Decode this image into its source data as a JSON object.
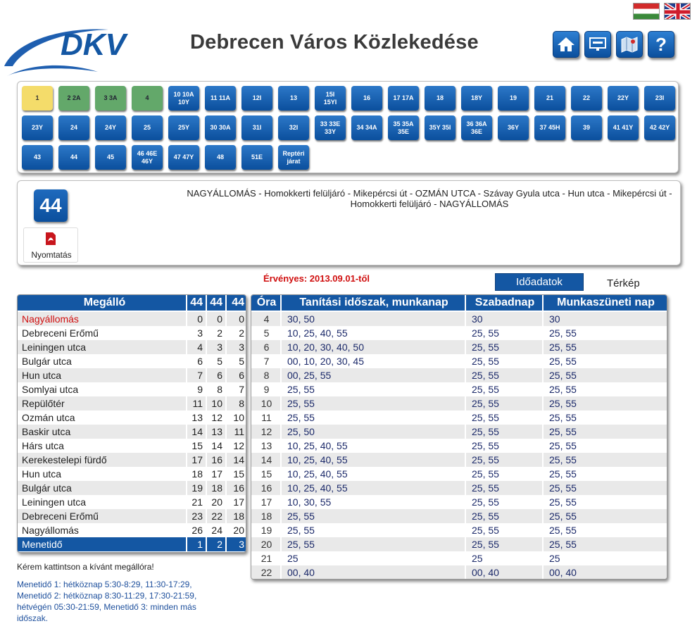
{
  "header": {
    "title": "Debrecen Város Közlekedése",
    "logo_text": "DKV",
    "buttons": [
      {
        "name": "home-button",
        "icon": "home-icon"
      },
      {
        "name": "display-button",
        "icon": "display-board-icon"
      },
      {
        "name": "map-button",
        "icon": "map-icon",
        "glyph": "▦"
      },
      {
        "name": "help-button",
        "icon": "help-icon",
        "glyph": "?"
      }
    ],
    "languages": [
      {
        "name": "flag-hungarian",
        "icon": "flag-hu-icon"
      },
      {
        "name": "flag-english",
        "icon": "flag-uk-icon"
      }
    ]
  },
  "lines": [
    {
      "label": "1",
      "style": "yellow"
    },
    {
      "label": "2 2A",
      "style": "green"
    },
    {
      "label": "3 3A",
      "style": "green"
    },
    {
      "label": "4",
      "style": "green"
    },
    {
      "label": "10 10A\n10Y",
      "style": "blue"
    },
    {
      "label": "11 11A",
      "style": "blue"
    },
    {
      "label": "12I",
      "style": "blue"
    },
    {
      "label": "13",
      "style": "blue"
    },
    {
      "label": "15I\n15YI",
      "style": "blue"
    },
    {
      "label": "16",
      "style": "blue"
    },
    {
      "label": "17 17A",
      "style": "blue"
    },
    {
      "label": "18",
      "style": "blue"
    },
    {
      "label": "18Y",
      "style": "blue"
    },
    {
      "label": "19",
      "style": "blue"
    },
    {
      "label": "21",
      "style": "blue"
    },
    {
      "label": "22",
      "style": "blue"
    },
    {
      "label": "22Y",
      "style": "blue"
    },
    {
      "label": "23I",
      "style": "blue"
    },
    {
      "label": "23Y",
      "style": "blue"
    },
    {
      "label": "24",
      "style": "blue"
    },
    {
      "label": "24Y",
      "style": "blue"
    },
    {
      "label": "25",
      "style": "blue"
    },
    {
      "label": "25Y",
      "style": "blue"
    },
    {
      "label": "30 30A",
      "style": "blue"
    },
    {
      "label": "31I",
      "style": "blue"
    },
    {
      "label": "32I",
      "style": "blue"
    },
    {
      "label": "33 33E\n33Y",
      "style": "blue"
    },
    {
      "label": "34 34A",
      "style": "blue"
    },
    {
      "label": "35 35A\n35E",
      "style": "blue"
    },
    {
      "label": "35Y 35I",
      "style": "blue"
    },
    {
      "label": "36 36A\n36E",
      "style": "blue"
    },
    {
      "label": "36Y",
      "style": "blue"
    },
    {
      "label": "37 45H",
      "style": "blue"
    },
    {
      "label": "39",
      "style": "blue"
    },
    {
      "label": "41 41Y",
      "style": "blue"
    },
    {
      "label": "42 42Y",
      "style": "blue"
    },
    {
      "label": "43",
      "style": "blue"
    },
    {
      "label": "44",
      "style": "blue"
    },
    {
      "label": "45",
      "style": "blue"
    },
    {
      "label": "46 46E\n46Y",
      "style": "blue"
    },
    {
      "label": "47 47Y",
      "style": "blue"
    },
    {
      "label": "48",
      "style": "blue"
    },
    {
      "label": "51E",
      "style": "blue"
    },
    {
      "label": "Reptéri\njárat",
      "style": "blue"
    }
  ],
  "route": {
    "number": "44",
    "description": "NAGYÁLLOMÁS - Homokkerti felüljáró - Mikepércsi út - OZMÁN UTCA - Szávay Gyula utca - Hun utca - Mikepércsi út - Homokkerti felüljáró - NAGYÁLLOMÁS",
    "print_label": "Nyomtatás",
    "print_icon": "pdf-icon"
  },
  "validity": "Érvényes: 2013.09.01-től",
  "tabs": {
    "active": "Időadatok",
    "other": "Térkép"
  },
  "stops_table": {
    "headers": [
      "Megálló",
      "44",
      "44",
      "44"
    ],
    "rows": [
      {
        "stop": "Nagyállomás",
        "t": [
          "0",
          "0",
          "0"
        ],
        "highlight": true
      },
      {
        "stop": "Debreceni Erőmű",
        "t": [
          "3",
          "2",
          "2"
        ]
      },
      {
        "stop": "Leiningen utca",
        "t": [
          "4",
          "3",
          "3"
        ]
      },
      {
        "stop": "Bulgár utca",
        "t": [
          "6",
          "5",
          "5"
        ]
      },
      {
        "stop": "Hun utca",
        "t": [
          "7",
          "6",
          "6"
        ]
      },
      {
        "stop": "Somlyai utca",
        "t": [
          "9",
          "8",
          "7"
        ]
      },
      {
        "stop": "Repülőtér",
        "t": [
          "11",
          "10",
          "8"
        ]
      },
      {
        "stop": "Ozmán utca",
        "t": [
          "13",
          "12",
          "10"
        ]
      },
      {
        "stop": "Baskir utca",
        "t": [
          "14",
          "13",
          "11"
        ]
      },
      {
        "stop": "Hárs utca",
        "t": [
          "15",
          "14",
          "12"
        ]
      },
      {
        "stop": "Kerekestelepi fürdő",
        "t": [
          "17",
          "16",
          "14"
        ]
      },
      {
        "stop": "Hun utca",
        "t": [
          "18",
          "17",
          "15"
        ]
      },
      {
        "stop": "Bulgár utca",
        "t": [
          "19",
          "18",
          "16"
        ]
      },
      {
        "stop": "Leiningen utca",
        "t": [
          "21",
          "20",
          "17"
        ]
      },
      {
        "stop": "Debreceni Erőmű",
        "t": [
          "23",
          "22",
          "18"
        ]
      },
      {
        "stop": "Nagyállomás",
        "t": [
          "26",
          "24",
          "20"
        ]
      }
    ],
    "footer": {
      "label": "Menetidő",
      "t": [
        "1",
        "2",
        "3"
      ]
    }
  },
  "times_table": {
    "headers": [
      "Óra",
      "Tanítási időszak, munkanap",
      "Szabadnap",
      "Munkaszüneti nap"
    ],
    "rows": [
      {
        "h": "4",
        "a": "30, 50",
        "b": "30",
        "c": "30"
      },
      {
        "h": "5",
        "a": "10, 25, 40, 55",
        "b": "25, 55",
        "c": "25, 55"
      },
      {
        "h": "6",
        "a": "10, 20, 30, 40, 50",
        "b": "25, 55",
        "c": "25, 55"
      },
      {
        "h": "7",
        "a": "00, 10, 20, 30, 45",
        "b": "25, 55",
        "c": "25, 55"
      },
      {
        "h": "8",
        "a": "00, 25, 55",
        "b": "25, 55",
        "c": "25, 55"
      },
      {
        "h": "9",
        "a": "25, 55",
        "b": "25, 55",
        "c": "25, 55"
      },
      {
        "h": "10",
        "a": "25, 55",
        "b": "25, 55",
        "c": "25, 55"
      },
      {
        "h": "11",
        "a": "25, 55",
        "b": "25, 55",
        "c": "25, 55"
      },
      {
        "h": "12",
        "a": "25, 50",
        "b": "25, 55",
        "c": "25, 55"
      },
      {
        "h": "13",
        "a": "10, 25, 40, 55",
        "b": "25, 55",
        "c": "25, 55"
      },
      {
        "h": "14",
        "a": "10, 25, 40, 55",
        "b": "25, 55",
        "c": "25, 55"
      },
      {
        "h": "15",
        "a": "10, 25, 40, 55",
        "b": "25, 55",
        "c": "25, 55"
      },
      {
        "h": "16",
        "a": "10, 25, 40, 55",
        "b": "25, 55",
        "c": "25, 55"
      },
      {
        "h": "17",
        "a": "10, 30, 55",
        "b": "25, 55",
        "c": "25, 55"
      },
      {
        "h": "18",
        "a": "25, 55",
        "b": "25, 55",
        "c": "25, 55"
      },
      {
        "h": "19",
        "a": "25, 55",
        "b": "25, 55",
        "c": "25, 55"
      },
      {
        "h": "20",
        "a": "25, 55",
        "b": "25, 55",
        "c": "25, 55"
      },
      {
        "h": "21",
        "a": "25",
        "b": "25",
        "c": "25"
      },
      {
        "h": "22",
        "a": "00, 40",
        "b": "00, 40",
        "c": "00, 40"
      }
    ]
  },
  "note": "Kérem kattintson a kívánt megállóra!",
  "legend": "Menetidő 1: hétköznap 5:30-8:29, 11:30-17:29, Menetidő 2: hétköznap 8:30-11:29, 17:30-21:59, hétvégén 05:30-21:59, Menetidő 3: minden más időszak.",
  "colors": {
    "brand": "#1457a3",
    "highlight": "#d01010",
    "row_alt": "#e9e9e9"
  }
}
